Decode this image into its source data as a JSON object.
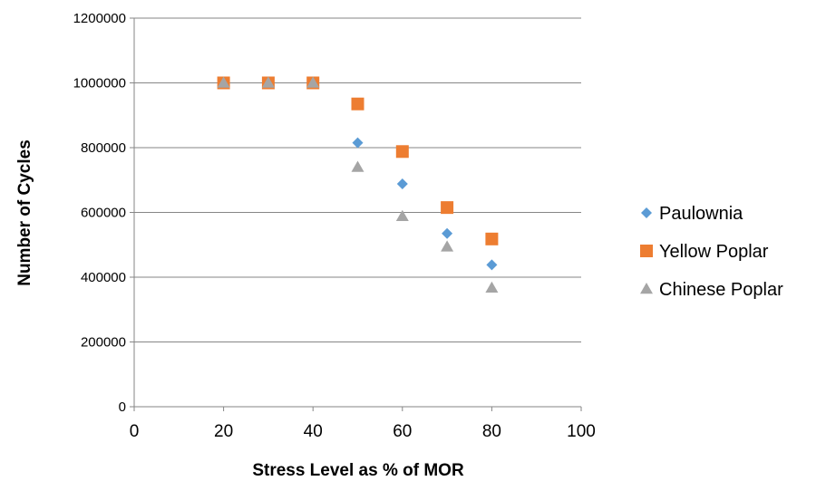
{
  "chart_data": {
    "type": "scatter",
    "xlabel": "Stress Level as % of MOR",
    "ylabel": "Number of Cycles",
    "xlim": [
      0,
      100
    ],
    "ylim": [
      0,
      1200000
    ],
    "x_ticks": [
      "0",
      "20",
      "40",
      "60",
      "80",
      "100"
    ],
    "y_ticks": [
      "0",
      "200000",
      "400000",
      "600000",
      "800000",
      "1000000",
      "1200000"
    ],
    "grid": "horizontal",
    "legend_position": "right",
    "series": [
      {
        "name": "Paulownia",
        "marker": "diamond",
        "color": "#5B9BD5",
        "points": [
          [
            20,
            1000000
          ],
          [
            30,
            1000000
          ],
          [
            40,
            1000000
          ],
          [
            50,
            815000
          ],
          [
            60,
            688000
          ],
          [
            70,
            535000
          ],
          [
            80,
            438000
          ]
        ]
      },
      {
        "name": "Yellow Poplar",
        "marker": "square",
        "color": "#ED7D31",
        "points": [
          [
            20,
            1000000
          ],
          [
            30,
            1000000
          ],
          [
            40,
            1000000
          ],
          [
            50,
            935000
          ],
          [
            60,
            788000
          ],
          [
            70,
            615000
          ],
          [
            80,
            518000
          ]
        ]
      },
      {
        "name": "Chinese Poplar",
        "marker": "triangle",
        "color": "#A5A5A5",
        "points": [
          [
            20,
            1000000
          ],
          [
            30,
            1000000
          ],
          [
            40,
            1000000
          ],
          [
            50,
            740000
          ],
          [
            60,
            588000
          ],
          [
            70,
            494000
          ],
          [
            80,
            367000
          ]
        ]
      }
    ]
  }
}
